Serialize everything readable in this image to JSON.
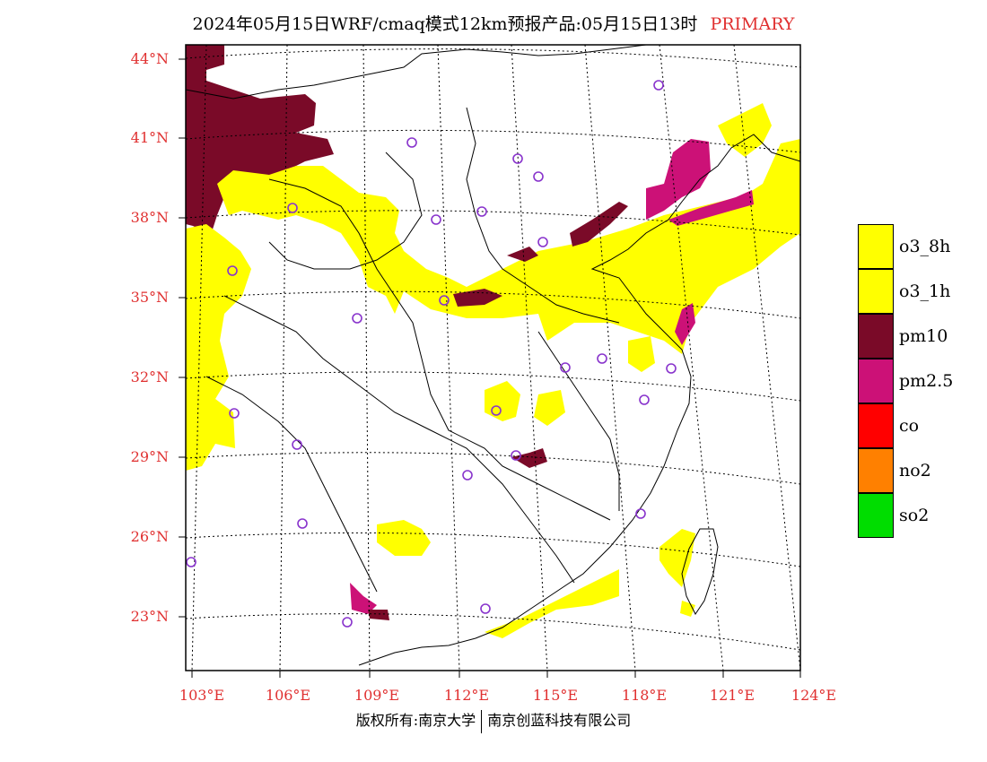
{
  "title": {
    "main": "2024年05月15日WRF/cmaq模式12km预报产品:05月15日13时",
    "tag": "PRIMARY"
  },
  "axes": {
    "lat_labels": [
      "44°N",
      "41°N",
      "38°N",
      "35°N",
      "32°N",
      "29°N",
      "26°N",
      "23°N"
    ],
    "lon_labels": [
      "103°E",
      "106°E",
      "109°E",
      "112°E",
      "115°E",
      "118°E",
      "121°E",
      "124°E"
    ]
  },
  "legend": [
    {
      "label": "o3_8h",
      "color": "#ffff00"
    },
    {
      "label": "o3_1h",
      "color": "#ffff00"
    },
    {
      "label": "pm10",
      "color": "#7a0a28"
    },
    {
      "label": "pm2.5",
      "color": "#cc1177"
    },
    {
      "label": "co",
      "color": "#ff0000"
    },
    {
      "label": "no2",
      "color": "#ff8000"
    },
    {
      "label": "so2",
      "color": "#00dd00"
    }
  ],
  "footer": {
    "left": "版权所有:南京大学",
    "right": "南京创蓝科技有限公司"
  }
}
